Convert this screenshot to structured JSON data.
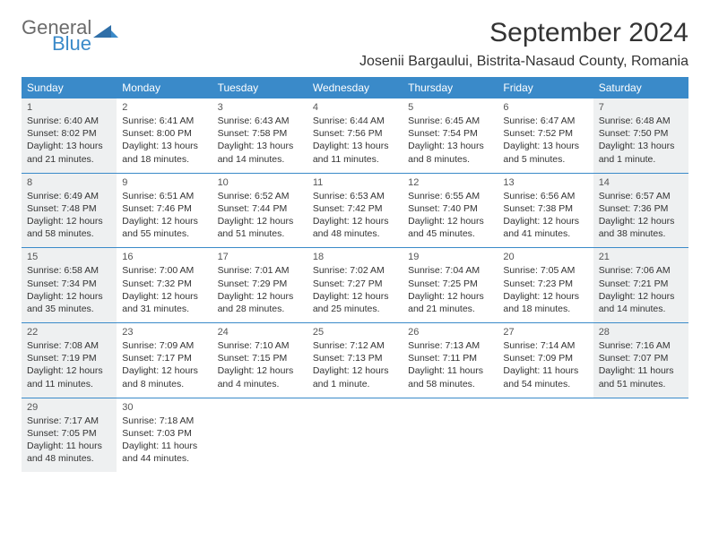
{
  "logo": {
    "word1": "General",
    "word2": "Blue",
    "accent_color": "#3a8ac9",
    "gray_color": "#6b6b6b"
  },
  "title": "September 2024",
  "location": "Josenii Bargaului, Bistrita-Nasaud County, Romania",
  "colors": {
    "header_bg": "#3a8ac9",
    "header_fg": "#ffffff",
    "row_border": "#3a8ac9",
    "shaded_bg": "#eef0f1",
    "text": "#333333"
  },
  "day_headers": [
    "Sunday",
    "Monday",
    "Tuesday",
    "Wednesday",
    "Thursday",
    "Friday",
    "Saturday"
  ],
  "weeks": [
    [
      {
        "n": "1",
        "shaded": true,
        "sr": "Sunrise: 6:40 AM",
        "ss": "Sunset: 8:02 PM",
        "dl1": "Daylight: 13 hours",
        "dl2": "and 21 minutes."
      },
      {
        "n": "2",
        "shaded": false,
        "sr": "Sunrise: 6:41 AM",
        "ss": "Sunset: 8:00 PM",
        "dl1": "Daylight: 13 hours",
        "dl2": "and 18 minutes."
      },
      {
        "n": "3",
        "shaded": false,
        "sr": "Sunrise: 6:43 AM",
        "ss": "Sunset: 7:58 PM",
        "dl1": "Daylight: 13 hours",
        "dl2": "and 14 minutes."
      },
      {
        "n": "4",
        "shaded": false,
        "sr": "Sunrise: 6:44 AM",
        "ss": "Sunset: 7:56 PM",
        "dl1": "Daylight: 13 hours",
        "dl2": "and 11 minutes."
      },
      {
        "n": "5",
        "shaded": false,
        "sr": "Sunrise: 6:45 AM",
        "ss": "Sunset: 7:54 PM",
        "dl1": "Daylight: 13 hours",
        "dl2": "and 8 minutes."
      },
      {
        "n": "6",
        "shaded": false,
        "sr": "Sunrise: 6:47 AM",
        "ss": "Sunset: 7:52 PM",
        "dl1": "Daylight: 13 hours",
        "dl2": "and 5 minutes."
      },
      {
        "n": "7",
        "shaded": true,
        "sr": "Sunrise: 6:48 AM",
        "ss": "Sunset: 7:50 PM",
        "dl1": "Daylight: 13 hours",
        "dl2": "and 1 minute."
      }
    ],
    [
      {
        "n": "8",
        "shaded": true,
        "sr": "Sunrise: 6:49 AM",
        "ss": "Sunset: 7:48 PM",
        "dl1": "Daylight: 12 hours",
        "dl2": "and 58 minutes."
      },
      {
        "n": "9",
        "shaded": false,
        "sr": "Sunrise: 6:51 AM",
        "ss": "Sunset: 7:46 PM",
        "dl1": "Daylight: 12 hours",
        "dl2": "and 55 minutes."
      },
      {
        "n": "10",
        "shaded": false,
        "sr": "Sunrise: 6:52 AM",
        "ss": "Sunset: 7:44 PM",
        "dl1": "Daylight: 12 hours",
        "dl2": "and 51 minutes."
      },
      {
        "n": "11",
        "shaded": false,
        "sr": "Sunrise: 6:53 AM",
        "ss": "Sunset: 7:42 PM",
        "dl1": "Daylight: 12 hours",
        "dl2": "and 48 minutes."
      },
      {
        "n": "12",
        "shaded": false,
        "sr": "Sunrise: 6:55 AM",
        "ss": "Sunset: 7:40 PM",
        "dl1": "Daylight: 12 hours",
        "dl2": "and 45 minutes."
      },
      {
        "n": "13",
        "shaded": false,
        "sr": "Sunrise: 6:56 AM",
        "ss": "Sunset: 7:38 PM",
        "dl1": "Daylight: 12 hours",
        "dl2": "and 41 minutes."
      },
      {
        "n": "14",
        "shaded": true,
        "sr": "Sunrise: 6:57 AM",
        "ss": "Sunset: 7:36 PM",
        "dl1": "Daylight: 12 hours",
        "dl2": "and 38 minutes."
      }
    ],
    [
      {
        "n": "15",
        "shaded": true,
        "sr": "Sunrise: 6:58 AM",
        "ss": "Sunset: 7:34 PM",
        "dl1": "Daylight: 12 hours",
        "dl2": "and 35 minutes."
      },
      {
        "n": "16",
        "shaded": false,
        "sr": "Sunrise: 7:00 AM",
        "ss": "Sunset: 7:32 PM",
        "dl1": "Daylight: 12 hours",
        "dl2": "and 31 minutes."
      },
      {
        "n": "17",
        "shaded": false,
        "sr": "Sunrise: 7:01 AM",
        "ss": "Sunset: 7:29 PM",
        "dl1": "Daylight: 12 hours",
        "dl2": "and 28 minutes."
      },
      {
        "n": "18",
        "shaded": false,
        "sr": "Sunrise: 7:02 AM",
        "ss": "Sunset: 7:27 PM",
        "dl1": "Daylight: 12 hours",
        "dl2": "and 25 minutes."
      },
      {
        "n": "19",
        "shaded": false,
        "sr": "Sunrise: 7:04 AM",
        "ss": "Sunset: 7:25 PM",
        "dl1": "Daylight: 12 hours",
        "dl2": "and 21 minutes."
      },
      {
        "n": "20",
        "shaded": false,
        "sr": "Sunrise: 7:05 AM",
        "ss": "Sunset: 7:23 PM",
        "dl1": "Daylight: 12 hours",
        "dl2": "and 18 minutes."
      },
      {
        "n": "21",
        "shaded": true,
        "sr": "Sunrise: 7:06 AM",
        "ss": "Sunset: 7:21 PM",
        "dl1": "Daylight: 12 hours",
        "dl2": "and 14 minutes."
      }
    ],
    [
      {
        "n": "22",
        "shaded": true,
        "sr": "Sunrise: 7:08 AM",
        "ss": "Sunset: 7:19 PM",
        "dl1": "Daylight: 12 hours",
        "dl2": "and 11 minutes."
      },
      {
        "n": "23",
        "shaded": false,
        "sr": "Sunrise: 7:09 AM",
        "ss": "Sunset: 7:17 PM",
        "dl1": "Daylight: 12 hours",
        "dl2": "and 8 minutes."
      },
      {
        "n": "24",
        "shaded": false,
        "sr": "Sunrise: 7:10 AM",
        "ss": "Sunset: 7:15 PM",
        "dl1": "Daylight: 12 hours",
        "dl2": "and 4 minutes."
      },
      {
        "n": "25",
        "shaded": false,
        "sr": "Sunrise: 7:12 AM",
        "ss": "Sunset: 7:13 PM",
        "dl1": "Daylight: 12 hours",
        "dl2": "and 1 minute."
      },
      {
        "n": "26",
        "shaded": false,
        "sr": "Sunrise: 7:13 AM",
        "ss": "Sunset: 7:11 PM",
        "dl1": "Daylight: 11 hours",
        "dl2": "and 58 minutes."
      },
      {
        "n": "27",
        "shaded": false,
        "sr": "Sunrise: 7:14 AM",
        "ss": "Sunset: 7:09 PM",
        "dl1": "Daylight: 11 hours",
        "dl2": "and 54 minutes."
      },
      {
        "n": "28",
        "shaded": true,
        "sr": "Sunrise: 7:16 AM",
        "ss": "Sunset: 7:07 PM",
        "dl1": "Daylight: 11 hours",
        "dl2": "and 51 minutes."
      }
    ],
    [
      {
        "n": "29",
        "shaded": true,
        "sr": "Sunrise: 7:17 AM",
        "ss": "Sunset: 7:05 PM",
        "dl1": "Daylight: 11 hours",
        "dl2": "and 48 minutes."
      },
      {
        "n": "30",
        "shaded": false,
        "sr": "Sunrise: 7:18 AM",
        "ss": "Sunset: 7:03 PM",
        "dl1": "Daylight: 11 hours",
        "dl2": "and 44 minutes."
      },
      {
        "empty": true
      },
      {
        "empty": true
      },
      {
        "empty": true
      },
      {
        "empty": true
      },
      {
        "empty": true
      }
    ]
  ]
}
